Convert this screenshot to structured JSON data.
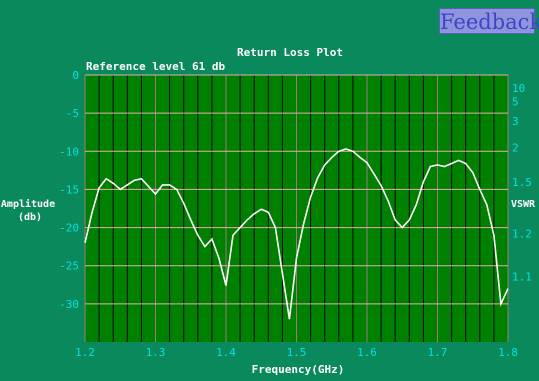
{
  "feedback": {
    "label": "Feedback"
  },
  "colors": {
    "background": "#0a8a5c",
    "plot_area": "#008000",
    "grid_vertical": "#000000",
    "grid_horizontal": "#e0b0b0",
    "trace": "#ffffff",
    "tick_text": "#00e0e0",
    "label_text": "#ffffff",
    "feedback_bg": "#8f95dc",
    "feedback_text": "#3f44c8"
  },
  "chart_data": {
    "type": "line",
    "title": "Return Loss Plot",
    "annotation": "Reference level 61 db",
    "xlabel": "Frequency(GHz)",
    "ylabel_left": [
      "Amplitude",
      "(db)"
    ],
    "ylabel_right": "VSWR",
    "xlim": [
      1.2,
      1.8
    ],
    "ylim": [
      -35,
      0
    ],
    "x_ticks": [
      1.2,
      1.3,
      1.4,
      1.5,
      1.6,
      1.7,
      1.8
    ],
    "x_tick_labels": [
      "1.2",
      "1.3",
      "1.4",
      "1.5",
      "1.6",
      "1.7",
      "1.8"
    ],
    "y_ticks": [
      0,
      -5,
      -10,
      -15,
      -20,
      -25,
      -30
    ],
    "y_tick_labels": [
      "0",
      "-5",
      "-10",
      "-15",
      "-20",
      "-25",
      "-30"
    ],
    "vswr_ticks": [
      {
        "label": "10",
        "db": -1.7
      },
      {
        "label": "5",
        "db": -3.5
      },
      {
        "label": "3",
        "db": -6.0
      },
      {
        "label": "2",
        "db": -9.5
      },
      {
        "label": "1.5",
        "db": -14.0
      },
      {
        "label": "1.2",
        "db": -20.8
      },
      {
        "label": "1.1",
        "db": -26.4
      }
    ],
    "grid": true,
    "x_grid_step": 0.02,
    "series": [
      {
        "x": [
          1.2,
          1.21,
          1.22,
          1.23,
          1.24,
          1.25,
          1.26,
          1.27,
          1.28,
          1.29,
          1.3,
          1.31,
          1.32,
          1.33,
          1.34,
          1.35,
          1.36,
          1.37,
          1.38,
          1.39,
          1.4,
          1.41,
          1.42,
          1.43,
          1.44,
          1.45,
          1.46,
          1.47,
          1.48,
          1.49,
          1.5,
          1.51,
          1.52,
          1.53,
          1.54,
          1.55,
          1.56,
          1.57,
          1.58,
          1.59,
          1.6,
          1.61,
          1.62,
          1.63,
          1.64,
          1.65,
          1.66,
          1.67,
          1.68,
          1.69,
          1.7,
          1.71,
          1.72,
          1.73,
          1.74,
          1.75,
          1.76,
          1.77,
          1.78,
          1.79,
          1.8
        ],
        "values": [
          -22,
          -18,
          -14.8,
          -13.6,
          -14.2,
          -15,
          -14.4,
          -13.8,
          -13.6,
          -14.6,
          -15.6,
          -14.4,
          -14.4,
          -15,
          -16.8,
          -19,
          -21,
          -22.5,
          -21.5,
          -24,
          -27.6,
          -21,
          -20,
          -19,
          -18.2,
          -17.6,
          -18,
          -20,
          -26,
          -32,
          -24,
          -19.5,
          -16,
          -13.5,
          -11.8,
          -10.8,
          -10,
          -9.7,
          -10,
          -10.8,
          -11.5,
          -13,
          -14.5,
          -16.5,
          -19,
          -20,
          -19,
          -17,
          -14,
          -12,
          -11.8,
          -12,
          -11.6,
          -11.2,
          -11.6,
          -12.8,
          -15,
          -17,
          -21,
          -30,
          -28
        ]
      }
    ]
  }
}
